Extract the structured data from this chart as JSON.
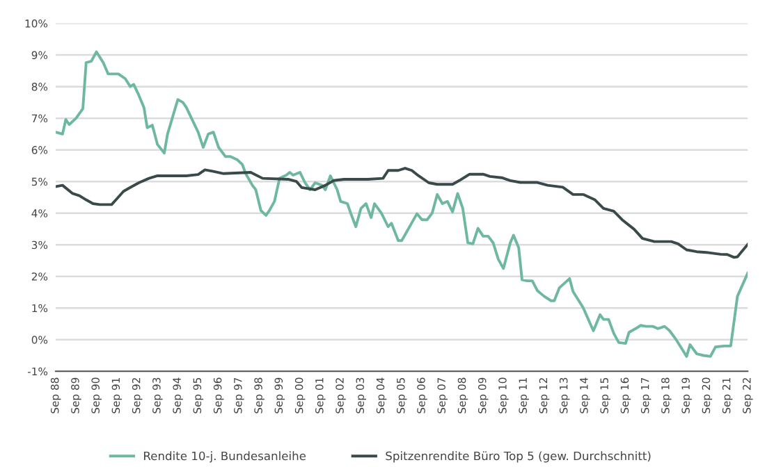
{
  "chart_data": {
    "type": "line",
    "xlim": [
      "1988-09",
      "2022-09"
    ],
    "ylim": [
      -1,
      10
    ],
    "xticks": [
      {
        "value": "1988-09",
        "label": "Sep 88"
      },
      {
        "value": "1989-09",
        "label": "Sep 89"
      },
      {
        "value": "1990-09",
        "label": "Sep 90"
      },
      {
        "value": "1991-09",
        "label": "Sep 91"
      },
      {
        "value": "1992-09",
        "label": "Sep 92"
      },
      {
        "value": "1993-09",
        "label": "Sep 93"
      },
      {
        "value": "1994-09",
        "label": "Sep 94"
      },
      {
        "value": "1995-09",
        "label": "Sep 95"
      },
      {
        "value": "1996-09",
        "label": "Sep 96"
      },
      {
        "value": "1997-09",
        "label": "Sep 97"
      },
      {
        "value": "1998-09",
        "label": "Sep 98"
      },
      {
        "value": "1999-09",
        "label": "Sep 99"
      },
      {
        "value": "2000-09",
        "label": "Sep 00"
      },
      {
        "value": "2001-09",
        "label": "Sep 01"
      },
      {
        "value": "2002-09",
        "label": "Sep 02"
      },
      {
        "value": "2003-09",
        "label": "Sep 03"
      },
      {
        "value": "2004-09",
        "label": "Sep 04"
      },
      {
        "value": "2005-09",
        "label": "Sep 05"
      },
      {
        "value": "2006-09",
        "label": "Sep 06"
      },
      {
        "value": "2007-09",
        "label": "Sep 07"
      },
      {
        "value": "2008-09",
        "label": "Sep 08"
      },
      {
        "value": "2009-09",
        "label": "Sep 09"
      },
      {
        "value": "2010-09",
        "label": "Sep 10"
      },
      {
        "value": "2011-09",
        "label": "Sep 11"
      },
      {
        "value": "2012-09",
        "label": "Sep 12"
      },
      {
        "value": "2013-09",
        "label": "Sep 13"
      },
      {
        "value": "2014-09",
        "label": "Sep 14"
      },
      {
        "value": "2015-09",
        "label": "Sep 15"
      },
      {
        "value": "2016-09",
        "label": "Sep 16"
      },
      {
        "value": "2017-09",
        "label": "Sep 17"
      },
      {
        "value": "2018-09",
        "label": "Sep 18"
      },
      {
        "value": "2019-09",
        "label": "Sep 19"
      },
      {
        "value": "2020-09",
        "label": "Sep 20"
      },
      {
        "value": "2021-09",
        "label": "Sep 21"
      },
      {
        "value": "2022-09",
        "label": "Sep 22"
      }
    ],
    "yticks": [
      {
        "value": -1,
        "label": "-1%"
      },
      {
        "value": 0,
        "label": "0%"
      },
      {
        "value": 1,
        "label": "1%"
      },
      {
        "value": 2,
        "label": "2%"
      },
      {
        "value": 3,
        "label": "3%"
      },
      {
        "value": 4,
        "label": "4%"
      },
      {
        "value": 5,
        "label": "5%"
      },
      {
        "value": 6,
        "label": "6%"
      },
      {
        "value": 7,
        "label": "7%"
      },
      {
        "value": 8,
        "label": "8%"
      },
      {
        "value": 9,
        "label": "9%"
      },
      {
        "value": 10,
        "label": "10%"
      }
    ],
    "grid": "y",
    "legend": "bottom",
    "line_style": "solid",
    "marker": "none",
    "series": [
      {
        "name": "Rendite 10-j. Bundesanleihe",
        "color": "#6fb8a0",
        "x": [
          "1988-09",
          "1989-01",
          "1989-03",
          "1989-05",
          "1989-09",
          "1990-01",
          "1990-03",
          "1990-06",
          "1990-09",
          "1991-01",
          "1991-04",
          "1991-10",
          "1992-02",
          "1992-05",
          "1992-07",
          "1992-10",
          "1993-01",
          "1993-03",
          "1993-06",
          "1993-09",
          "1994-01",
          "1994-03",
          "1994-09",
          "1994-12",
          "1995-02",
          "1995-09",
          "1995-12",
          "1996-03",
          "1996-06",
          "1996-09",
          "1997-01",
          "1997-04",
          "1997-08",
          "1997-11",
          "1998-01",
          "1998-05",
          "1998-07",
          "1998-10",
          "1999-01",
          "1999-03",
          "1999-06",
          "1999-09",
          "2000-01",
          "2000-03",
          "2000-05",
          "2000-09",
          "2000-12",
          "2001-03",
          "2001-06",
          "2001-10",
          "2001-12",
          "2002-03",
          "2002-07",
          "2002-09",
          "2003-01",
          "2003-03",
          "2003-06",
          "2003-09",
          "2003-12",
          "2004-03",
          "2004-05",
          "2004-09",
          "2005-01",
          "2005-03",
          "2005-07",
          "2005-09",
          "2006-06",
          "2006-09",
          "2006-12",
          "2007-03",
          "2007-06",
          "2007-09",
          "2007-12",
          "2008-03",
          "2008-06",
          "2008-09",
          "2008-12",
          "2009-03",
          "2009-06",
          "2009-09",
          "2009-12",
          "2010-03",
          "2010-06",
          "2010-09",
          "2011-01",
          "2011-03",
          "2011-06",
          "2011-08",
          "2011-11",
          "2012-02",
          "2012-05",
          "2012-09",
          "2013-01",
          "2013-03",
          "2013-06",
          "2013-12",
          "2014-02",
          "2014-08",
          "2015-02",
          "2015-06",
          "2015-08",
          "2015-11",
          "2016-02",
          "2016-05",
          "2016-09",
          "2016-11",
          "2017-03",
          "2017-06",
          "2017-09",
          "2018-01",
          "2018-04",
          "2018-06",
          "2018-08",
          "2018-11",
          "2019-03",
          "2019-09",
          "2019-11",
          "2020-03",
          "2020-07",
          "2020-11",
          "2021-02",
          "2021-07",
          "2021-11",
          "2022-03",
          "2022-09"
        ],
        "values": [
          6.56,
          6.5,
          6.96,
          6.8,
          7.0,
          7.3,
          8.76,
          8.8,
          9.1,
          8.76,
          8.4,
          8.4,
          8.25,
          8.0,
          8.07,
          7.73,
          7.34,
          6.7,
          6.78,
          6.17,
          5.9,
          6.5,
          7.59,
          7.5,
          7.34,
          6.56,
          6.08,
          6.5,
          6.56,
          6.08,
          5.79,
          5.79,
          5.69,
          5.54,
          5.25,
          4.88,
          4.74,
          4.08,
          3.93,
          4.08,
          4.37,
          5.1,
          5.2,
          5.29,
          5.2,
          5.29,
          4.96,
          4.74,
          4.96,
          4.88,
          4.74,
          5.18,
          4.74,
          4.37,
          4.3,
          4.0,
          3.57,
          4.15,
          4.3,
          3.86,
          4.3,
          4.0,
          3.57,
          3.68,
          3.13,
          3.13,
          3.98,
          3.79,
          3.79,
          4.0,
          4.59,
          4.3,
          4.37,
          4.04,
          4.62,
          4.15,
          3.06,
          3.03,
          3.52,
          3.27,
          3.27,
          3.06,
          2.54,
          2.25,
          3.06,
          3.3,
          2.91,
          1.89,
          1.86,
          1.86,
          1.55,
          1.37,
          1.23,
          1.23,
          1.64,
          1.93,
          1.52,
          1.01,
          0.28,
          0.79,
          0.64,
          0.64,
          0.2,
          -0.09,
          -0.12,
          0.23,
          0.35,
          0.45,
          0.42,
          0.42,
          0.35,
          0.38,
          0.42,
          0.28,
          -0.01,
          -0.53,
          -0.16,
          -0.45,
          -0.5,
          -0.53,
          -0.23,
          -0.2,
          -0.2,
          1.37,
          2.1
        ]
      },
      {
        "name": "Spitzenrendite Büro Top 5 (gew. Durchschnitt)",
        "color": "#3a4a4a",
        "x": [
          "1988-09",
          "1989-01",
          "1989-07",
          "1989-11",
          "1990-03",
          "1990-07",
          "1990-11",
          "1991-06",
          "1991-09",
          "1992-01",
          "1992-05",
          "1992-10",
          "1993-04",
          "1993-09",
          "1994-03",
          "1995-02",
          "1995-09",
          "1996-01",
          "1996-06",
          "1996-12",
          "1998-04",
          "1998-11",
          "2000-02",
          "2000-07",
          "2000-10",
          "2001-06",
          "2001-12",
          "2002-05",
          "2002-11",
          "2004-01",
          "2004-10",
          "2005-01",
          "2005-07",
          "2005-11",
          "2006-03",
          "2006-07",
          "2007-01",
          "2007-06",
          "2008-03",
          "2008-07",
          "2009-01",
          "2009-09",
          "2010-01",
          "2010-08",
          "2011-01",
          "2011-07",
          "2012-05",
          "2012-11",
          "2013-08",
          "2014-02",
          "2014-08",
          "2015-03",
          "2015-08",
          "2016-02",
          "2016-07",
          "2017-02",
          "2017-07",
          "2018-02",
          "2018-12",
          "2019-04",
          "2019-09",
          "2020-03",
          "2020-10",
          "2021-05",
          "2021-09",
          "2022-01",
          "2022-03",
          "2022-09"
        ],
        "values": [
          4.84,
          4.88,
          4.62,
          4.55,
          4.42,
          4.3,
          4.27,
          4.27,
          4.45,
          4.69,
          4.81,
          4.96,
          5.1,
          5.18,
          5.18,
          5.18,
          5.22,
          5.37,
          5.32,
          5.25,
          5.29,
          5.1,
          5.07,
          5.0,
          4.81,
          4.74,
          4.88,
          5.03,
          5.07,
          5.07,
          5.1,
          5.35,
          5.35,
          5.42,
          5.35,
          5.18,
          4.96,
          4.91,
          4.91,
          5.03,
          5.23,
          5.23,
          5.16,
          5.12,
          5.03,
          4.97,
          4.97,
          4.88,
          4.82,
          4.59,
          4.59,
          4.42,
          4.15,
          4.06,
          3.79,
          3.49,
          3.2,
          3.1,
          3.1,
          3.03,
          2.84,
          2.78,
          2.75,
          2.7,
          2.69,
          2.6,
          2.62,
          3.01
        ]
      }
    ]
  }
}
